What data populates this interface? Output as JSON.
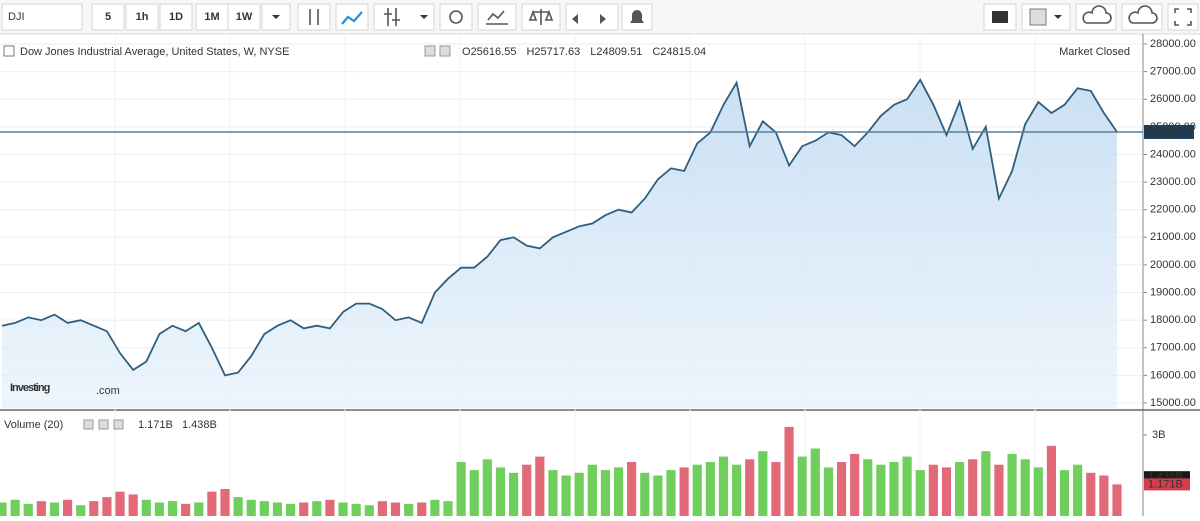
{
  "toolbar": {
    "symbol": "DJI",
    "intervals": [
      "5",
      "1h",
      "1D",
      "1M",
      "1W"
    ],
    "active_interval": 4
  },
  "chart_data": {
    "type": "area",
    "title": "Dow Jones Industrial Average, United States, W, NYSE",
    "ohlc": [
      {
        "label": "O",
        "value": 25616.55
      },
      {
        "label": "H",
        "value": 25717.63
      },
      {
        "label": "L",
        "value": 24809.51
      },
      {
        "label": "C",
        "value": 24815.04
      }
    ],
    "status": "Market Closed",
    "watermark": [
      "Investing",
      ".com"
    ],
    "color": "#2e5f7f",
    "values": [
      17800,
      17900,
      18100,
      18000,
      18200,
      17900,
      18000,
      17800,
      17600,
      16800,
      16200,
      16500,
      17500,
      17800,
      17600,
      17900,
      17000,
      16000,
      16100,
      16700,
      17500,
      17800,
      18000,
      17700,
      17800,
      17700,
      18300,
      18600,
      18600,
      18400,
      18000,
      18100,
      17900,
      19000,
      19500,
      19900,
      19900,
      20300,
      20900,
      21000,
      20700,
      20600,
      21000,
      21200,
      21400,
      21500,
      21800,
      22000,
      21900,
      22400,
      23100,
      23500,
      23400,
      24400,
      24800,
      25800,
      26600,
      24300,
      25200,
      24800,
      23600,
      24300,
      24500,
      24800,
      24700,
      24300,
      24800,
      25400,
      25800,
      26000,
      26700,
      25800,
      24700,
      25900,
      24200,
      25000,
      22400,
      23400,
      25100,
      25900,
      25500,
      25800,
      26400,
      26300,
      25500,
      24815.04
    ],
    "last_price": {
      "value": 24815.04,
      "label": "24815.04"
    },
    "ylim": [
      15000,
      28000
    ],
    "yticks": [
      {
        "value": 15000,
        "label": "15000.00"
      },
      {
        "value": 16000,
        "label": "16000.00"
      },
      {
        "value": 17000,
        "label": "17000.00"
      },
      {
        "value": 18000,
        "label": "18000.00"
      },
      {
        "value": 19000,
        "label": "19000.00"
      },
      {
        "value": 20000,
        "label": "20000.00"
      },
      {
        "value": 21000,
        "label": "21000.00"
      },
      {
        "value": 22000,
        "label": "22000.00"
      },
      {
        "value": 23000,
        "label": "23000.00"
      },
      {
        "value": 24000,
        "label": "24000.00"
      },
      {
        "value": 25000,
        "label": "25000.00"
      },
      {
        "value": 26000,
        "label": "26000.00"
      },
      {
        "value": 27000,
        "label": "27000.00"
      },
      {
        "value": 28000,
        "label": "28000.00"
      }
    ],
    "grid": true,
    "volume": {
      "title": "Volume (20)",
      "last": {
        "value": 1.171,
        "label": "1.171B"
      },
      "average": {
        "value": 1.438,
        "label": "1.438B"
      },
      "up_color": "#6fcf5c",
      "down_color": "#e26a78",
      "values": [
        0.5,
        0.6,
        0.45,
        0.55,
        0.5,
        0.6,
        0.4,
        0.55,
        0.7,
        0.9,
        0.8,
        0.6,
        0.5,
        0.55,
        0.45,
        0.5,
        0.9,
        1.0,
        0.7,
        0.6,
        0.55,
        0.5,
        0.45,
        0.5,
        0.55,
        0.6,
        0.5,
        0.45,
        0.4,
        0.55,
        0.5,
        0.45,
        0.5,
        0.6,
        0.55,
        2.0,
        1.7,
        2.1,
        1.8,
        1.6,
        1.9,
        2.2,
        1.7,
        1.5,
        1.6,
        1.9,
        1.7,
        1.8,
        2.0,
        1.6,
        1.5,
        1.7,
        1.8,
        1.9,
        2.0,
        2.2,
        1.9,
        2.1,
        2.4,
        2.0,
        3.3,
        2.2,
        2.5,
        1.8,
        2.0,
        2.3,
        2.1,
        1.9,
        2.0,
        2.2,
        1.7,
        1.9,
        1.8,
        2.0,
        2.1,
        2.4,
        1.9,
        2.3,
        2.1,
        1.8,
        2.6,
        1.7,
        1.9,
        1.6,
        1.5,
        1.171
      ],
      "ylim": [
        0,
        3.5
      ],
      "yticks": [
        {
          "value": 3,
          "label": "3B"
        }
      ]
    }
  }
}
